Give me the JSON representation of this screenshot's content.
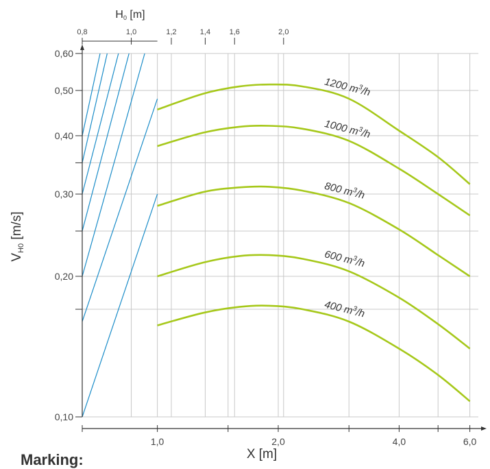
{
  "chart_data": {
    "type": "line",
    "xlabel": "X [m]",
    "ylabel": "V",
    "ylabel_sub": "H0",
    "ylabel_unit": " [m/s]",
    "x_scale": "log",
    "y_scale": "log",
    "xlim": [
      0.65,
      6.3
    ],
    "ylim": [
      0.1,
      0.6
    ],
    "x_ticks": [
      {
        "value": 1.0,
        "label": "1,0"
      },
      {
        "value": 2.0,
        "label": "2,0"
      },
      {
        "value": 4.0,
        "label": "4,0"
      },
      {
        "value": 6.0,
        "label": "6,0"
      }
    ],
    "x_minor_ticks": [
      1.5,
      3.0,
      5.0
    ],
    "y_ticks": [
      {
        "value": 0.1,
        "label": "0,10"
      },
      {
        "value": 0.2,
        "label": "0,20"
      },
      {
        "value": 0.3,
        "label": "0,30"
      },
      {
        "value": 0.4,
        "label": "0,40"
      },
      {
        "value": 0.5,
        "label": "0,50"
      },
      {
        "value": 0.6,
        "label": "0,60"
      }
    ],
    "y_minor_ticks": [
      0.17,
      0.25,
      0.35
    ],
    "top_axis": {
      "label": "H",
      "label_sub": "0",
      "label_unit": " [m]",
      "ticks": [
        {
          "value": 0.8,
          "label": "0,8"
        },
        {
          "value": 1.0,
          "label": "1,0"
        },
        {
          "value": 1.2,
          "label": "1,2"
        },
        {
          "value": 1.4,
          "label": "1,4"
        },
        {
          "value": 1.6,
          "label": "1,6"
        },
        {
          "value": 2.0,
          "label": "2,0"
        }
      ]
    },
    "grid": true,
    "series": [
      {
        "name": "1200 m",
        "name_sup": "3",
        "name_tail": "/h",
        "x": [
          1.0,
          1.3,
          1.6,
          1.9,
          2.3,
          3.0,
          4.0,
          5.0,
          6.0
        ],
        "y": [
          0.455,
          0.492,
          0.51,
          0.515,
          0.51,
          0.48,
          0.41,
          0.36,
          0.315
        ]
      },
      {
        "name": "1000 m",
        "name_sup": "3",
        "name_tail": "/h",
        "x": [
          1.0,
          1.3,
          1.6,
          1.9,
          2.3,
          3.0,
          4.0,
          5.0,
          6.0
        ],
        "y": [
          0.38,
          0.406,
          0.418,
          0.42,
          0.414,
          0.39,
          0.34,
          0.3,
          0.27
        ]
      },
      {
        "name": "800 m",
        "name_sup": "3",
        "name_tail": "/h",
        "x": [
          1.0,
          1.3,
          1.6,
          1.9,
          2.3,
          3.0,
          4.0,
          5.0,
          6.0
        ],
        "y": [
          0.283,
          0.303,
          0.31,
          0.311,
          0.305,
          0.287,
          0.252,
          0.222,
          0.2
        ]
      },
      {
        "name": "600 m",
        "name_sup": "3",
        "name_tail": "/h",
        "x": [
          1.0,
          1.3,
          1.6,
          1.9,
          2.3,
          3.0,
          4.0,
          5.0,
          6.0
        ],
        "y": [
          0.2,
          0.214,
          0.221,
          0.222,
          0.218,
          0.205,
          0.18,
          0.158,
          0.14
        ]
      },
      {
        "name": "400 m",
        "name_sup": "3",
        "name_tail": "/h",
        "x": [
          1.0,
          1.3,
          1.6,
          1.9,
          2.3,
          3.0,
          4.0,
          5.0,
          6.0
        ],
        "y": [
          0.157,
          0.167,
          0.172,
          0.173,
          0.17,
          0.16,
          0.14,
          0.123,
          0.108
        ]
      }
    ],
    "nomogram_lines": [
      {
        "x": [
          0.65,
          1.0
        ],
        "y": [
          0.1,
          0.3
        ]
      },
      {
        "x": [
          0.65,
          1.0
        ],
        "y": [
          0.16,
          0.48
        ]
      },
      {
        "x": [
          0.65,
          0.93
        ],
        "y": [
          0.2,
          0.6
        ]
      },
      {
        "x": [
          0.65,
          0.85
        ],
        "y": [
          0.25,
          0.6
        ]
      },
      {
        "x": [
          0.65,
          0.8
        ],
        "y": [
          0.3,
          0.6
        ]
      },
      {
        "x": [
          0.65,
          0.75
        ],
        "y": [
          0.35,
          0.6
        ]
      },
      {
        "x": [
          0.65,
          0.72
        ],
        "y": [
          0.4,
          0.6
        ]
      }
    ],
    "colors": {
      "series": "#a6c81a",
      "nomogram": "#1a8cc8",
      "grid": "#c8c8c8",
      "axis": "#333333"
    }
  },
  "footer": {
    "marking": "Marking:"
  }
}
